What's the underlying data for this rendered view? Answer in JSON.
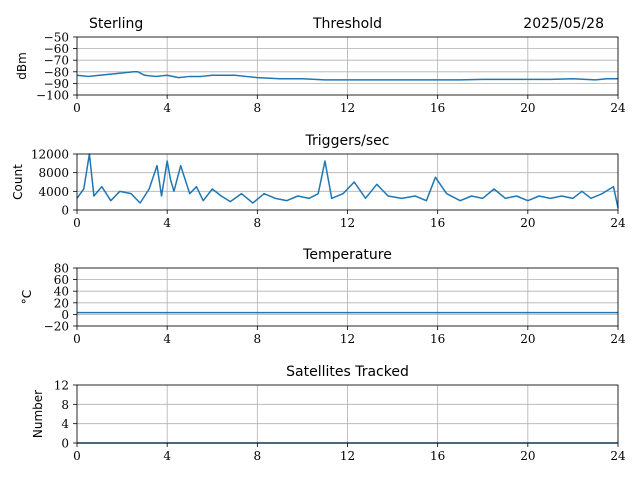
{
  "header": {
    "station": "Sterling",
    "date": "2025/05/28"
  },
  "colors": {
    "series": "#1f77b4",
    "grid": "#b0b0b0",
    "frame": "#000000"
  },
  "chart_data": [
    {
      "type": "line",
      "title": "Threshold",
      "ylabel": "dBm",
      "xlim": [
        0,
        24
      ],
      "xticks": [
        "0",
        "4",
        "8",
        "12",
        "16",
        "20",
        "24"
      ],
      "ylim": [
        -100,
        -50
      ],
      "yticks": [
        "−100",
        "−90",
        "−80",
        "−70",
        "−60",
        "−50"
      ],
      "grid": true,
      "x": [
        0,
        0.5,
        1,
        1.5,
        2,
        2.5,
        2.7,
        3,
        3.5,
        4,
        4.5,
        5,
        5.5,
        6,
        6.5,
        7,
        7.5,
        8,
        9,
        10,
        11,
        12,
        13,
        14,
        15,
        16,
        17,
        18,
        19,
        20,
        21,
        22,
        23,
        23.5,
        24
      ],
      "y": [
        -83,
        -84,
        -83,
        -82,
        -81,
        -80,
        -80,
        -83,
        -84,
        -83,
        -85,
        -84,
        -84,
        -83,
        -83,
        -83,
        -84,
        -85,
        -86,
        -86,
        -87,
        -87,
        -87,
        -87,
        -87,
        -87,
        -87,
        -86.5,
        -86.5,
        -86.5,
        -86.5,
        -86,
        -87,
        -86,
        -86
      ]
    },
    {
      "type": "line",
      "title": "Triggers/sec",
      "ylabel": "Count",
      "xlim": [
        0,
        24
      ],
      "xticks": [
        "0",
        "4",
        "8",
        "12",
        "16",
        "20",
        "24"
      ],
      "ylim": [
        0,
        12000
      ],
      "yticks": [
        "0",
        "4000",
        "8000",
        "12000"
      ],
      "grid": true,
      "x": [
        0,
        0.3,
        0.55,
        0.75,
        1.1,
        1.5,
        1.9,
        2.4,
        2.8,
        3.2,
        3.55,
        3.75,
        4.0,
        4.15,
        4.3,
        4.6,
        5.0,
        5.3,
        5.6,
        6.0,
        6.4,
        6.8,
        7.3,
        7.8,
        8.3,
        8.8,
        9.3,
        9.8,
        10.3,
        10.7,
        11.0,
        11.3,
        11.8,
        12.3,
        12.8,
        13.3,
        13.8,
        14.4,
        15.0,
        15.5,
        15.9,
        16.4,
        17.0,
        17.5,
        18.0,
        18.5,
        19.0,
        19.5,
        20.0,
        20.5,
        21.0,
        21.5,
        22.0,
        22.4,
        22.8,
        23.3,
        23.8,
        24
      ],
      "y": [
        2500,
        4500,
        12000,
        3000,
        5000,
        2000,
        4000,
        3500,
        1500,
        4500,
        9500,
        3000,
        10500,
        6500,
        4000,
        9500,
        3500,
        5000,
        2000,
        4500,
        3000,
        1800,
        3500,
        1500,
        3500,
        2500,
        2000,
        3000,
        2500,
        3500,
        10500,
        2500,
        3500,
        6000,
        2500,
        5500,
        3000,
        2500,
        3000,
        2000,
        7000,
        3500,
        2000,
        3000,
        2500,
        4500,
        2500,
        3000,
        2000,
        3000,
        2500,
        3000,
        2500,
        4000,
        2500,
        3500,
        5000,
        500
      ]
    },
    {
      "type": "line",
      "title": "Temperature",
      "ylabel": "°C",
      "xlim": [
        0,
        24
      ],
      "xticks": [
        "0",
        "4",
        "8",
        "12",
        "16",
        "20",
        "24"
      ],
      "ylim": [
        -20,
        80
      ],
      "yticks": [
        "−20",
        "0",
        "20",
        "40",
        "60",
        "80"
      ],
      "grid": true,
      "x": [
        0,
        24
      ],
      "y": [
        3,
        3
      ]
    },
    {
      "type": "line",
      "title": "Satellites Tracked",
      "ylabel": "Number",
      "xlim": [
        0,
        24
      ],
      "xticks": [
        "0",
        "4",
        "8",
        "12",
        "16",
        "20",
        "24"
      ],
      "ylim": [
        0,
        12
      ],
      "yticks": [
        "0",
        "4",
        "8",
        "12"
      ],
      "grid": true,
      "x": [
        0,
        24
      ],
      "y": [
        0,
        0
      ]
    }
  ]
}
